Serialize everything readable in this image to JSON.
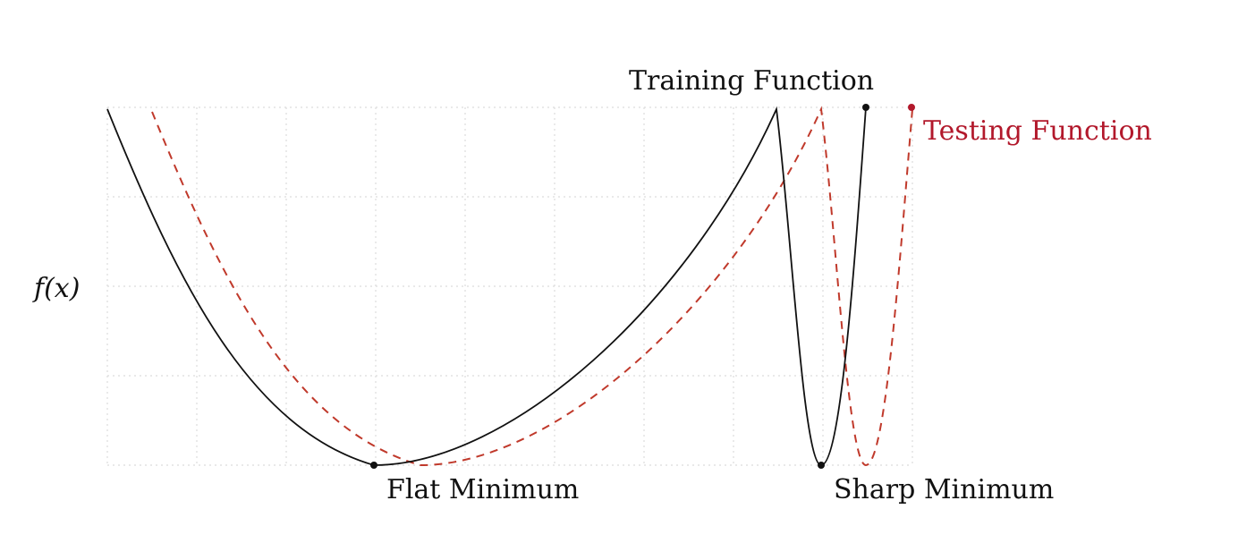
{
  "diagram": {
    "y_axis_label": "f(x)",
    "training_label": "Training Function",
    "testing_label": "Testing Function",
    "flat_min_label": "Flat Minimum",
    "sharp_min_label": "Sharp Minimum"
  },
  "colors": {
    "training": "#111111",
    "testing": "#c0392b",
    "testing_label": "#b2182b",
    "grid": "#dcdcdc"
  }
}
